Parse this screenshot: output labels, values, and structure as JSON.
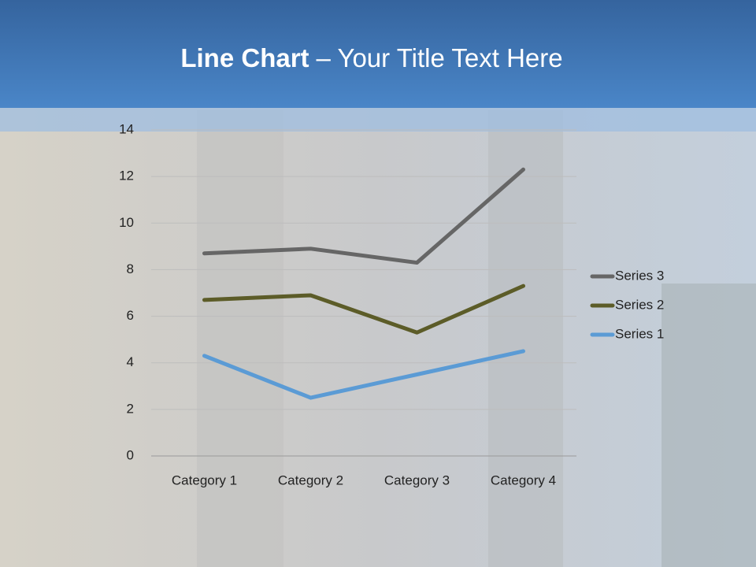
{
  "slide": {
    "title_bold": "Line Chart",
    "title_rest": "– Your Title Text Here"
  },
  "chart_data": {
    "type": "line",
    "stacked": true,
    "categories": [
      "Category 1",
      "Category 2",
      "Category 3",
      "Category 4"
    ],
    "series": [
      {
        "name": "Series 1",
        "color": "#5b9bd5",
        "values": [
          4.3,
          2.5,
          3.5,
          4.5
        ]
      },
      {
        "name": "Series 2",
        "color": "#5c5c28",
        "values": [
          2.4,
          4.4,
          1.8,
          2.8
        ]
      },
      {
        "name": "Series 3",
        "color": "#666666",
        "values": [
          2,
          2,
          3,
          5
        ]
      }
    ],
    "ylim": [
      0,
      14
    ],
    "yticks": [
      0,
      2,
      4,
      6,
      8,
      10,
      12,
      14
    ],
    "grid": true,
    "legend": "right"
  }
}
